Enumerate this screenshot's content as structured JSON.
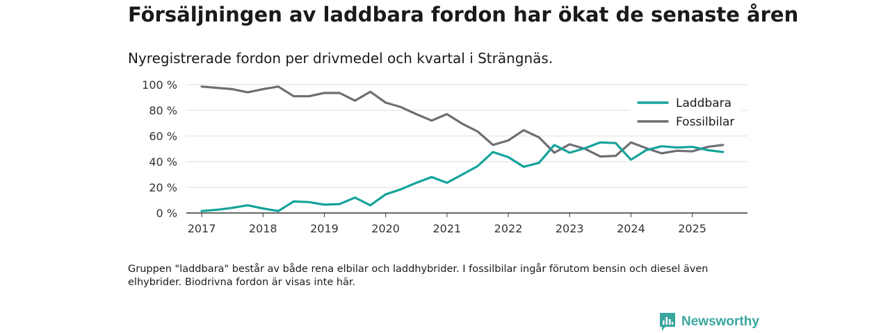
{
  "title": "Försäljningen av laddbara fordon har ökat de senaste åren",
  "subtitle": "Nyregistrerade fordon per drivmedel och kvartal i Strängnäs.",
  "footnote": "Gruppen \"laddbara\" består av både rena elbilar och laddhybrider. I fossilbilar ingår förutom bensin och diesel även elhybrider. Biodrivna fordon är visas inte här.",
  "brand": {
    "name": "Newsworthy",
    "color": "#3aa6a0"
  },
  "chart_data": {
    "type": "line",
    "title": "Nyregistrerade fordon per drivmedel och kvartal i Strängnäs.",
    "xlabel": "",
    "ylabel": "",
    "ylim": [
      0,
      100
    ],
    "xlim": [
      2016.75,
      2025.9
    ],
    "y_ticks": [
      0,
      20,
      40,
      60,
      80,
      100
    ],
    "y_tick_labels": [
      "0 %",
      "20 %",
      "40 %",
      "60 %",
      "80 %",
      "100 %"
    ],
    "x_ticks": [
      2017,
      2018,
      2019,
      2020,
      2021,
      2022,
      2023,
      2024,
      2025
    ],
    "x_tick_labels": [
      "2017",
      "2018",
      "2019",
      "2020",
      "2021",
      "2022",
      "2023",
      "2024",
      "2025"
    ],
    "grid": true,
    "legend_position": "top-right",
    "x": [
      2017,
      2017.25,
      2017.5,
      2017.75,
      2018,
      2018.25,
      2018.5,
      2018.75,
      2019,
      2019.25,
      2019.5,
      2019.75,
      2020,
      2020.25,
      2020.5,
      2020.75,
      2021,
      2021.25,
      2021.5,
      2021.75,
      2022,
      2022.25,
      2022.5,
      2022.75,
      2023,
      2023.25,
      2023.5,
      2023.75,
      2024,
      2024.25,
      2024.5,
      2024.75,
      2025,
      2025.25,
      2025.5
    ],
    "series": [
      {
        "name": "Laddbara",
        "color": "#14a39a",
        "values": [
          1.5,
          2.5,
          4,
          6,
          3.5,
          1.5,
          9,
          8.5,
          6.5,
          7,
          12,
          6,
          14.5,
          18.5,
          23.5,
          28,
          23.5,
          30,
          36.5,
          47.5,
          43.5,
          36,
          39,
          53,
          47,
          50.5,
          55,
          54.5,
          41.5,
          49,
          52,
          51,
          51.5,
          49,
          47.5
        ]
      },
      {
        "name": "Fossilbilar",
        "color": "#6e6d72",
        "values": [
          98.5,
          97.5,
          96.5,
          94,
          96.5,
          98.5,
          91,
          91,
          93.5,
          93.5,
          87.5,
          94.5,
          86,
          82.5,
          77,
          72,
          77,
          69.5,
          63.5,
          53,
          56.5,
          64.5,
          59,
          47,
          53.5,
          50,
          44,
          44.5,
          55,
          50.5,
          46.5,
          48.5,
          48,
          51.5,
          53
        ]
      }
    ]
  }
}
